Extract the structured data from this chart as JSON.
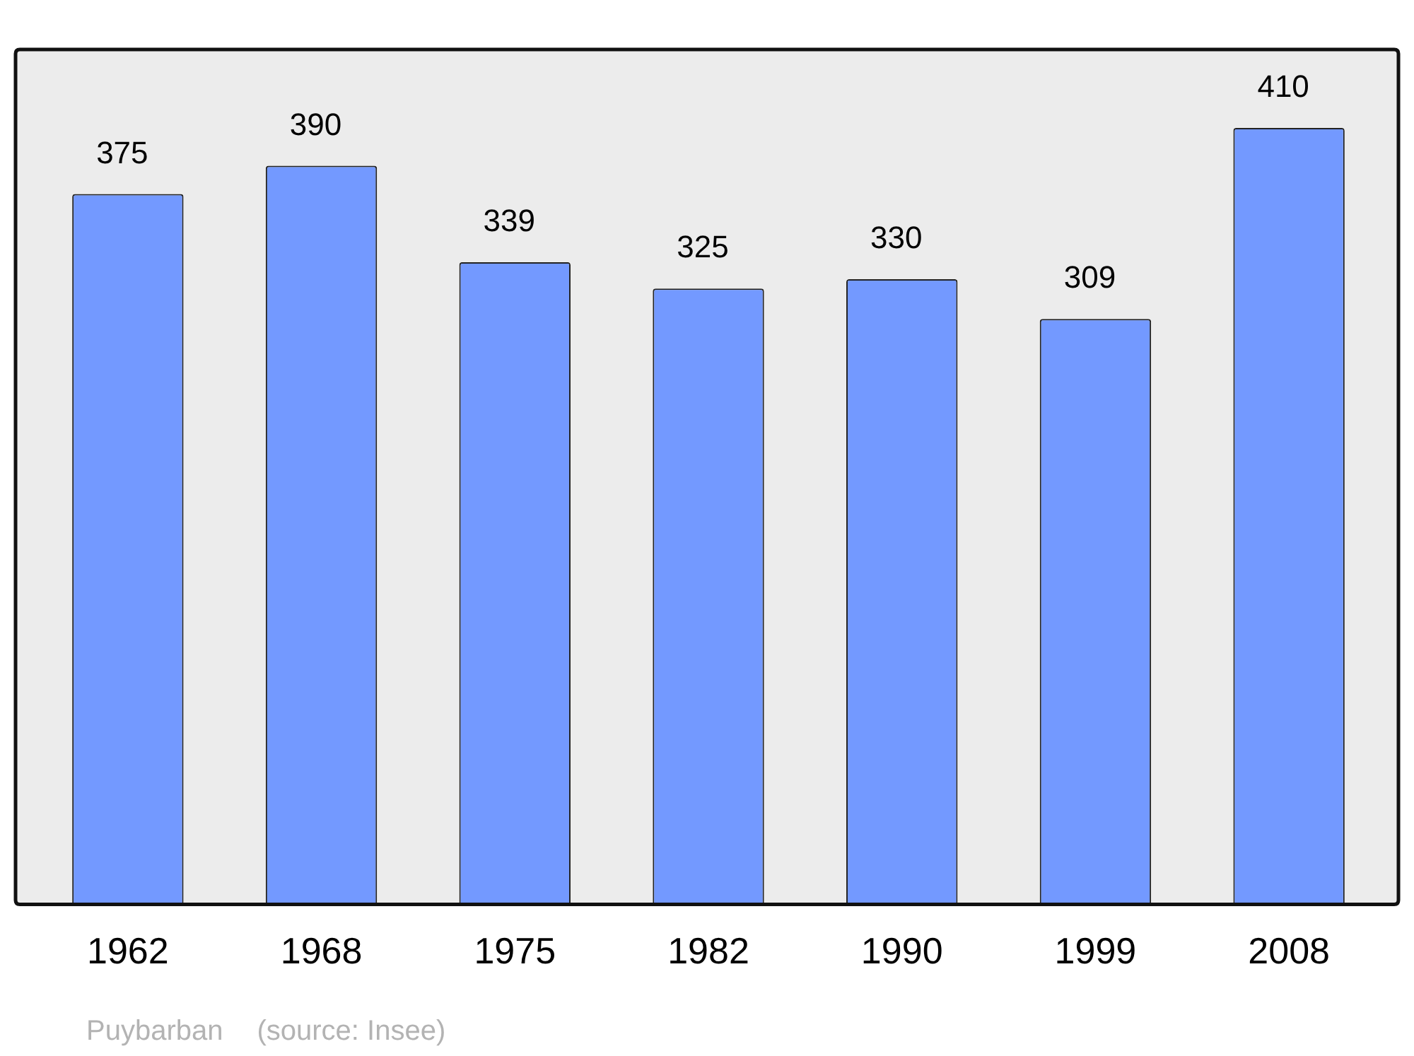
{
  "chart_data": {
    "type": "bar",
    "categories": [
      "1962",
      "1968",
      "1975",
      "1982",
      "1990",
      "1999",
      "2008"
    ],
    "values": [
      375,
      390,
      339,
      325,
      330,
      309,
      410
    ],
    "color": "#7399ff",
    "ylim": [
      0,
      450
    ],
    "data_labels": true,
    "annotations": [
      "Puybarban",
      "(source: Insee)"
    ]
  }
}
